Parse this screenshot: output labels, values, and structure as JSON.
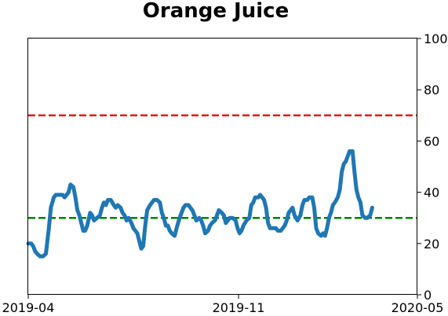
{
  "chart_data": {
    "type": "line",
    "title": "Orange Juice",
    "xlabel": "",
    "ylabel": "",
    "ylim": [
      0,
      100
    ],
    "y_ticks": [
      0,
      20,
      40,
      60,
      80,
      100
    ],
    "y_axis_side": "right",
    "x_ticks": [
      "2019-04",
      "2019-11",
      "2020-05"
    ],
    "xlim": [
      "2019-04-01",
      "2020-05-01"
    ],
    "grid": false,
    "legend": "none",
    "reference_lines": [
      {
        "y": 70,
        "color": "#e31a1c",
        "style": "dashed"
      },
      {
        "y": 30,
        "color": "#008000",
        "style": "dashed"
      }
    ],
    "series": [
      {
        "color": "#1f77b4",
        "points": [
          [
            "2019-04-01",
            20
          ],
          [
            "2019-04-04",
            20
          ],
          [
            "2019-04-06",
            19
          ],
          [
            "2019-04-08",
            17
          ],
          [
            "2019-04-10",
            16
          ],
          [
            "2019-04-13",
            15
          ],
          [
            "2019-04-16",
            15
          ],
          [
            "2019-04-19",
            16
          ],
          [
            "2019-04-22",
            26
          ],
          [
            "2019-04-24",
            34
          ],
          [
            "2019-04-27",
            38
          ],
          [
            "2019-04-29",
            39
          ],
          [
            "2019-05-02",
            39
          ],
          [
            "2019-05-06",
            39
          ],
          [
            "2019-05-08",
            38
          ],
          [
            "2019-05-10",
            39
          ],
          [
            "2019-05-12",
            40
          ],
          [
            "2019-05-14",
            43
          ],
          [
            "2019-05-17",
            42
          ],
          [
            "2019-05-19",
            38
          ],
          [
            "2019-05-21",
            33
          ],
          [
            "2019-05-23",
            31
          ],
          [
            "2019-05-25",
            28
          ],
          [
            "2019-05-27",
            25
          ],
          [
            "2019-05-29",
            25
          ],
          [
            "2019-05-31",
            27
          ],
          [
            "2019-06-03",
            32
          ],
          [
            "2019-06-05",
            31
          ],
          [
            "2019-06-07",
            29
          ],
          [
            "2019-06-10",
            30
          ],
          [
            "2019-06-13",
            31
          ],
          [
            "2019-06-15",
            34
          ],
          [
            "2019-06-17",
            36
          ],
          [
            "2019-06-19",
            35
          ],
          [
            "2019-06-21",
            37
          ],
          [
            "2019-06-24",
            37
          ],
          [
            "2019-06-27",
            35
          ],
          [
            "2019-06-29",
            34
          ],
          [
            "2019-07-01",
            35
          ],
          [
            "2019-07-04",
            34
          ],
          [
            "2019-07-06",
            32
          ],
          [
            "2019-07-08",
            31
          ],
          [
            "2019-07-10",
            29
          ],
          [
            "2019-07-12",
            30
          ],
          [
            "2019-07-15",
            28
          ],
          [
            "2019-07-17",
            26
          ],
          [
            "2019-07-19",
            25
          ],
          [
            "2019-07-21",
            24
          ],
          [
            "2019-07-23",
            21
          ],
          [
            "2019-07-25",
            18
          ],
          [
            "2019-07-27",
            19
          ],
          [
            "2019-07-29",
            27
          ],
          [
            "2019-07-31",
            33
          ],
          [
            "2019-08-03",
            35
          ],
          [
            "2019-08-05",
            36
          ],
          [
            "2019-08-07",
            37
          ],
          [
            "2019-08-10",
            37
          ],
          [
            "2019-08-13",
            36
          ],
          [
            "2019-08-15",
            32
          ],
          [
            "2019-08-17",
            30
          ],
          [
            "2019-08-19",
            27
          ],
          [
            "2019-08-21",
            27
          ],
          [
            "2019-08-23",
            25
          ],
          [
            "2019-08-25",
            24
          ],
          [
            "2019-08-28",
            23
          ],
          [
            "2019-08-30",
            26
          ],
          [
            "2019-09-02",
            30
          ],
          [
            "2019-09-04",
            32
          ],
          [
            "2019-09-06",
            34
          ],
          [
            "2019-09-08",
            35
          ],
          [
            "2019-09-11",
            35
          ],
          [
            "2019-09-13",
            34
          ],
          [
            "2019-09-15",
            33
          ],
          [
            "2019-09-17",
            31
          ],
          [
            "2019-09-19",
            29
          ],
          [
            "2019-09-22",
            30
          ],
          [
            "2019-09-24",
            29
          ],
          [
            "2019-09-26",
            27
          ],
          [
            "2019-09-28",
            24
          ],
          [
            "2019-10-01",
            25
          ],
          [
            "2019-10-03",
            27
          ],
          [
            "2019-10-05",
            28
          ],
          [
            "2019-10-08",
            29
          ],
          [
            "2019-10-10",
            31
          ],
          [
            "2019-10-12",
            33
          ],
          [
            "2019-10-15",
            32
          ],
          [
            "2019-10-17",
            31
          ],
          [
            "2019-10-19",
            28
          ],
          [
            "2019-10-21",
            29
          ],
          [
            "2019-10-23",
            30
          ],
          [
            "2019-10-26",
            30
          ],
          [
            "2019-10-29",
            29
          ],
          [
            "2019-10-31",
            26
          ],
          [
            "2019-11-02",
            24
          ],
          [
            "2019-11-04",
            25
          ],
          [
            "2019-11-06",
            27
          ],
          [
            "2019-11-09",
            29
          ],
          [
            "2019-11-12",
            30
          ],
          [
            "2019-11-14",
            35
          ],
          [
            "2019-11-16",
            36
          ],
          [
            "2019-11-18",
            38
          ],
          [
            "2019-11-21",
            38
          ],
          [
            "2019-11-23",
            39
          ],
          [
            "2019-11-25",
            38
          ],
          [
            "2019-11-27",
            37
          ],
          [
            "2019-11-29",
            34
          ],
          [
            "2019-12-01",
            28
          ],
          [
            "2019-12-03",
            26
          ],
          [
            "2019-12-06",
            26
          ],
          [
            "2019-12-09",
            26
          ],
          [
            "2019-12-11",
            25
          ],
          [
            "2019-12-14",
            25
          ],
          [
            "2019-12-16",
            26
          ],
          [
            "2019-12-18",
            27
          ],
          [
            "2019-12-20",
            29
          ],
          [
            "2019-12-22",
            32
          ],
          [
            "2019-12-24",
            33
          ],
          [
            "2019-12-26",
            34
          ],
          [
            "2019-12-28",
            31
          ],
          [
            "2019-12-31",
            29
          ],
          [
            "2020-01-03",
            31
          ],
          [
            "2020-01-05",
            35
          ],
          [
            "2020-01-07",
            37
          ],
          [
            "2020-01-10",
            37
          ],
          [
            "2020-01-12",
            38
          ],
          [
            "2020-01-15",
            38
          ],
          [
            "2020-01-17",
            34
          ],
          [
            "2020-01-19",
            26
          ],
          [
            "2020-01-21",
            24
          ],
          [
            "2020-01-24",
            23
          ],
          [
            "2020-01-26",
            24
          ],
          [
            "2020-01-28",
            23
          ],
          [
            "2020-01-30",
            26
          ],
          [
            "2020-02-01",
            30
          ],
          [
            "2020-02-03",
            32
          ],
          [
            "2020-02-05",
            35
          ],
          [
            "2020-02-07",
            36
          ],
          [
            "2020-02-10",
            38
          ],
          [
            "2020-02-12",
            41
          ],
          [
            "2020-02-14",
            48
          ],
          [
            "2020-02-16",
            51
          ],
          [
            "2020-02-18",
            52
          ],
          [
            "2020-02-20",
            54
          ],
          [
            "2020-02-22",
            56
          ],
          [
            "2020-02-25",
            56
          ],
          [
            "2020-02-27",
            48
          ],
          [
            "2020-02-29",
            41
          ],
          [
            "2020-03-02",
            38
          ],
          [
            "2020-03-04",
            36
          ],
          [
            "2020-03-06",
            31
          ],
          [
            "2020-03-09",
            30
          ],
          [
            "2020-03-11",
            30
          ],
          [
            "2020-03-14",
            31
          ],
          [
            "2020-03-16",
            34
          ]
        ]
      }
    ]
  }
}
